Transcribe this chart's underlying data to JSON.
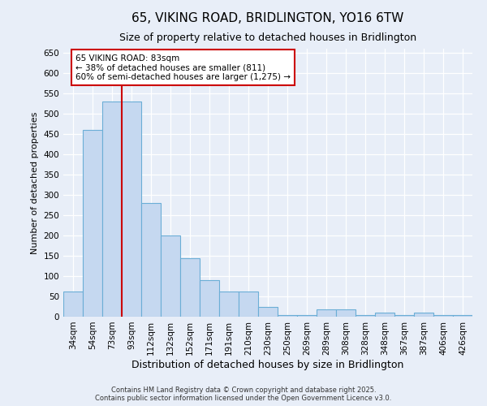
{
  "title_line1": "65, VIKING ROAD, BRIDLINGTON, YO16 6TW",
  "title_line2": "Size of property relative to detached houses in Bridlington",
  "xlabel": "Distribution of detached houses by size in Bridlington",
  "ylabel": "Number of detached properties",
  "categories": [
    "34sqm",
    "54sqm",
    "73sqm",
    "93sqm",
    "112sqm",
    "132sqm",
    "152sqm",
    "171sqm",
    "191sqm",
    "210sqm",
    "230sqm",
    "250sqm",
    "269sqm",
    "289sqm",
    "308sqm",
    "328sqm",
    "348sqm",
    "367sqm",
    "387sqm",
    "406sqm",
    "426sqm"
  ],
  "values": [
    63,
    460,
    530,
    530,
    280,
    200,
    145,
    90,
    63,
    63,
    25,
    5,
    5,
    18,
    18,
    5,
    10,
    5,
    10,
    5,
    5
  ],
  "bar_color": "#c5d8f0",
  "bar_edgecolor": "#6baed6",
  "redline_index": 2,
  "annotation_text": "65 VIKING ROAD: 83sqm\n← 38% of detached houses are smaller (811)\n60% of semi-detached houses are larger (1,275) →",
  "annotation_box_facecolor": "#ffffff",
  "annotation_box_edgecolor": "#cc0000",
  "ylim": [
    0,
    660
  ],
  "yticks": [
    0,
    50,
    100,
    150,
    200,
    250,
    300,
    350,
    400,
    450,
    500,
    550,
    600,
    650
  ],
  "background_color": "#e8eef8",
  "grid_color": "#ffffff",
  "footer_line1": "Contains HM Land Registry data © Crown copyright and database right 2025.",
  "footer_line2": "Contains public sector information licensed under the Open Government Licence v3.0.",
  "title_fontsize": 11,
  "subtitle_fontsize": 9,
  "tick_fontsize": 7.5,
  "ylabel_fontsize": 8,
  "xlabel_fontsize": 9
}
